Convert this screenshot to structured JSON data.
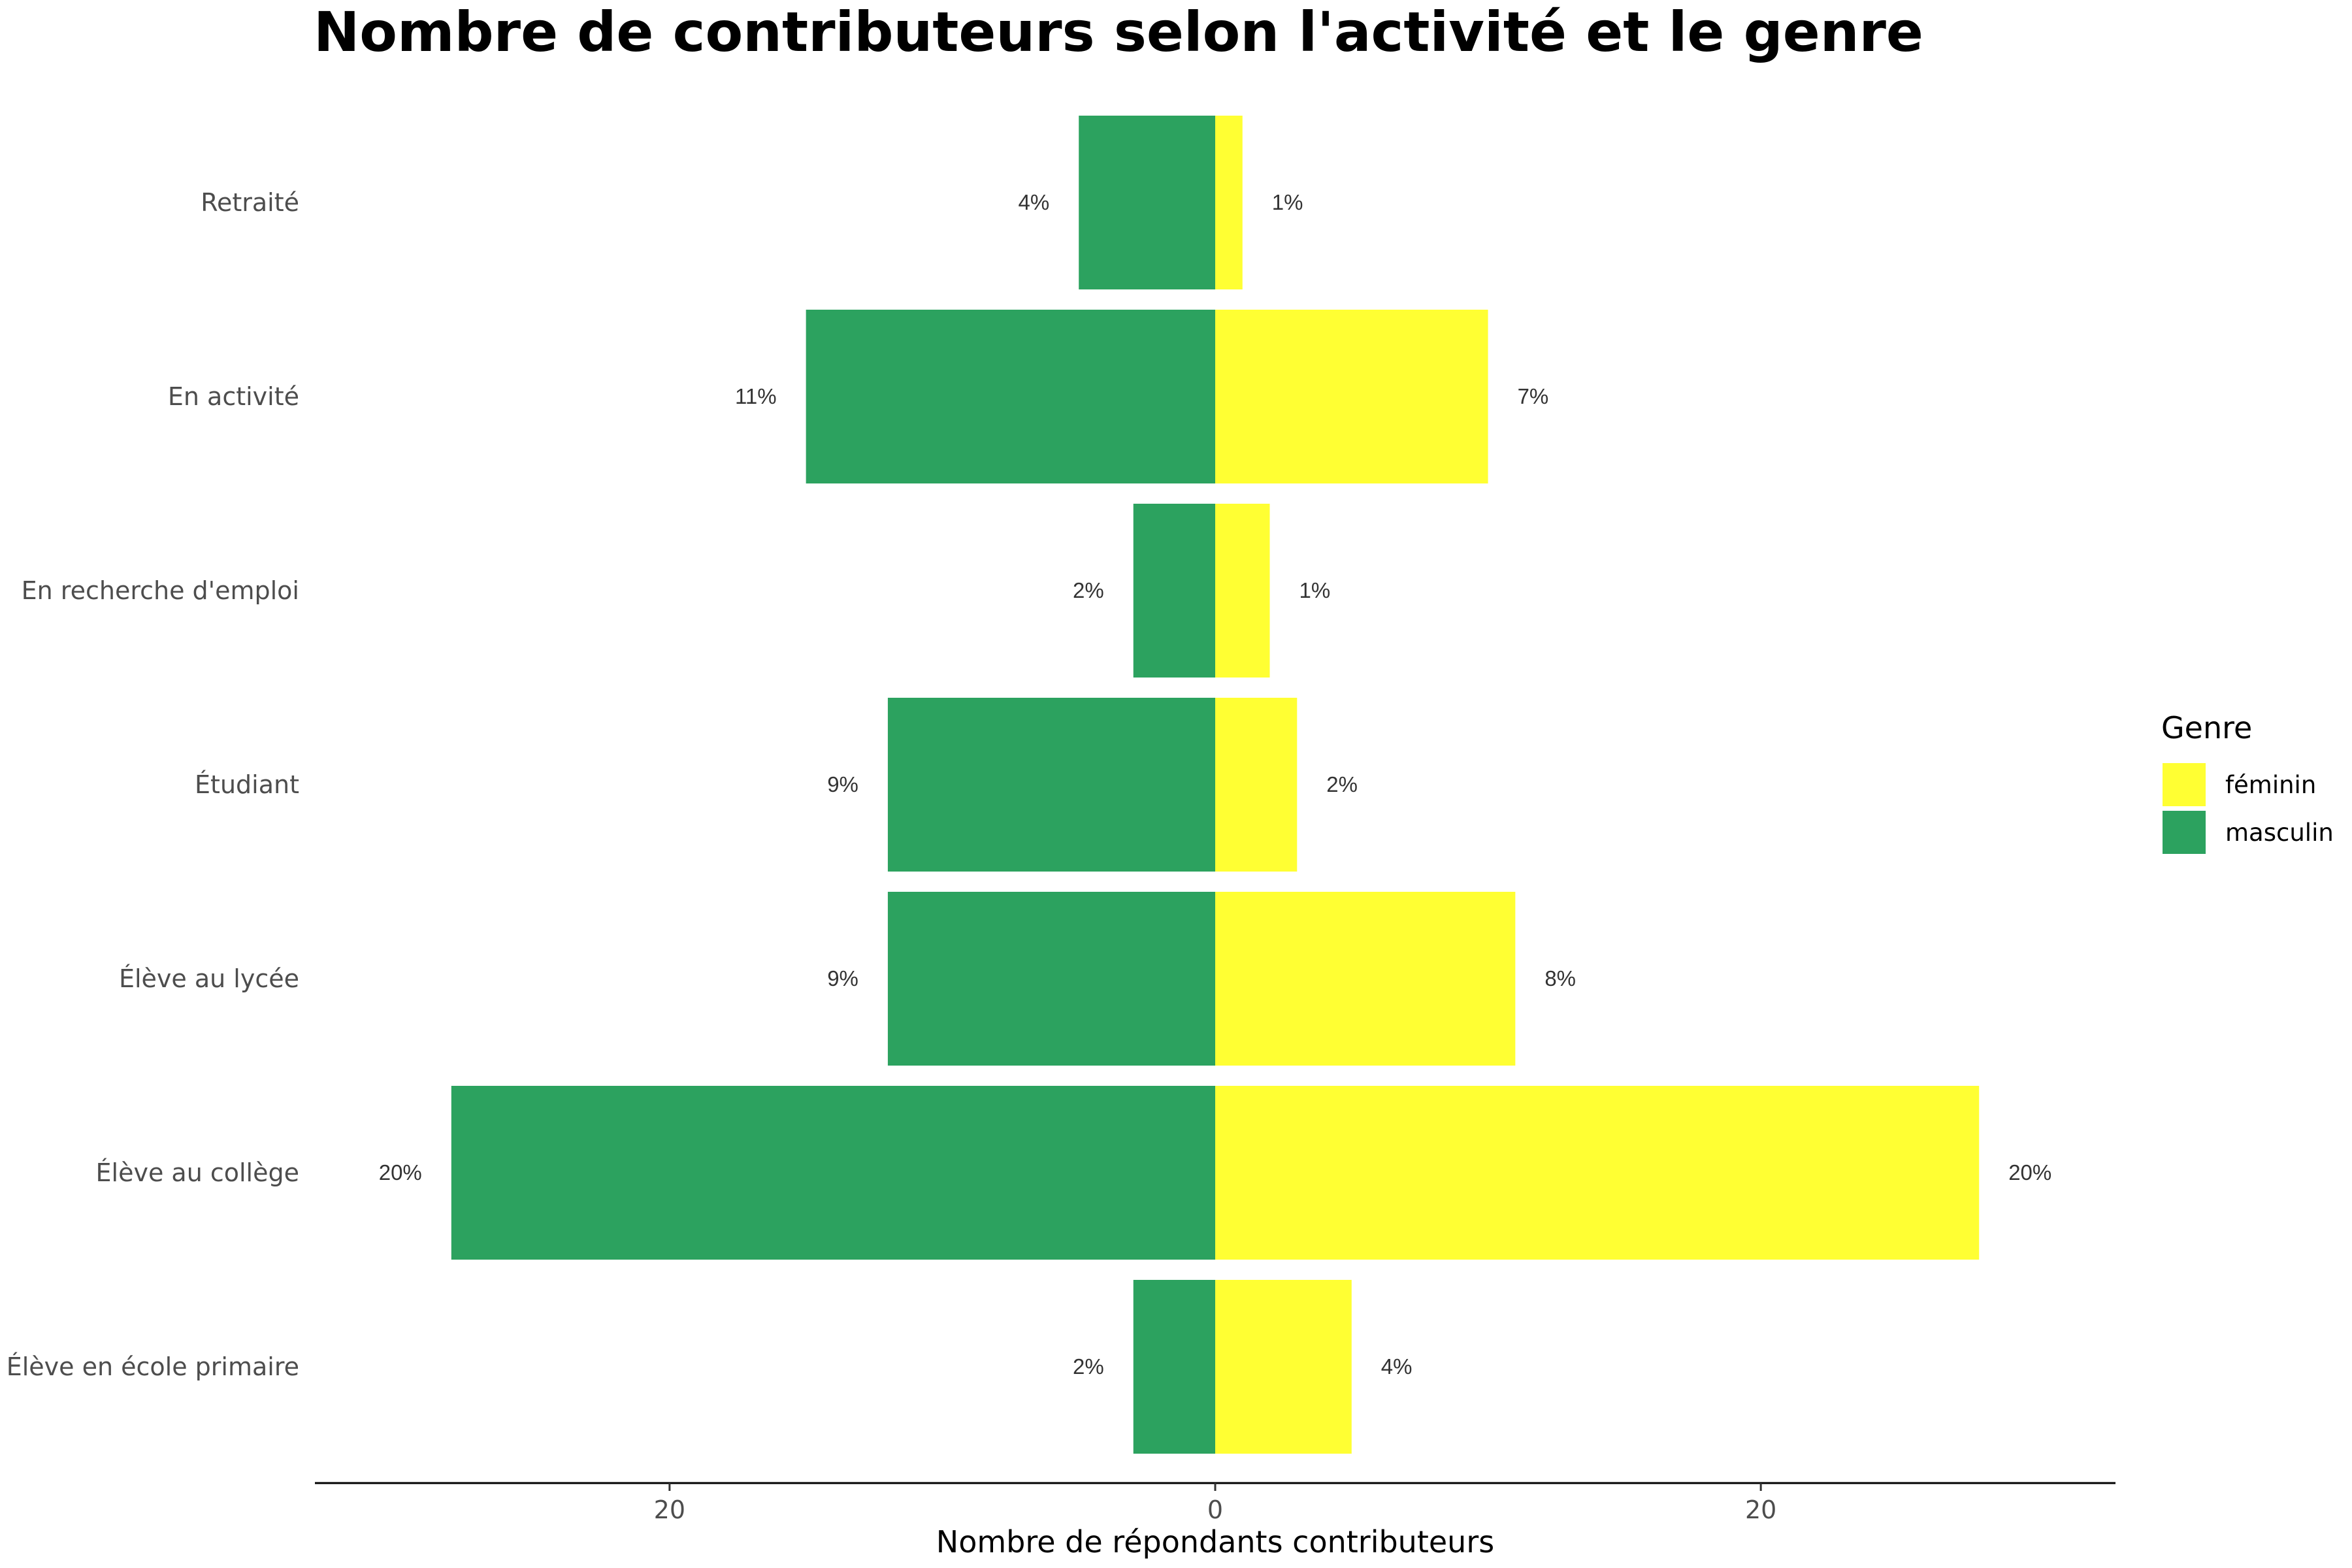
{
  "chart_data": {
    "type": "bar",
    "orientation": "horizontal",
    "title": "Nombre de contributeurs selon l'activité et le genre",
    "xlabel": "Nombre de répondants contributeurs",
    "ylabel": "",
    "xlim": [
      -33,
      33
    ],
    "xticks": [
      -20,
      0,
      20
    ],
    "xtick_labels": [
      "20",
      "0",
      "20"
    ],
    "grid": false,
    "legend": {
      "title": "Genre",
      "position": "right",
      "entries": [
        {
          "label": "féminin",
          "color": "#FFFF33"
        },
        {
          "label": "masculin",
          "color": "#2CA25F"
        }
      ]
    },
    "categories": [
      "Retraité",
      "En activité",
      "En recherche d'emploi",
      "Étudiant",
      "Élève au lycée",
      "Élève au collège",
      "Élève en école primaire"
    ],
    "series": [
      {
        "name": "masculin",
        "color": "#2CA25F",
        "side": "left",
        "values": [
          5,
          15,
          3,
          12,
          12,
          28,
          3
        ],
        "labels": [
          "4%",
          "11%",
          "2%",
          "9%",
          "9%",
          "20%",
          "2%"
        ]
      },
      {
        "name": "féminin",
        "color": "#FFFF33",
        "side": "right",
        "values": [
          1,
          10,
          2,
          3,
          11,
          28,
          5
        ],
        "labels": [
          "1%",
          "7%",
          "1%",
          "2%",
          "8%",
          "20%",
          "4%"
        ]
      }
    ]
  }
}
